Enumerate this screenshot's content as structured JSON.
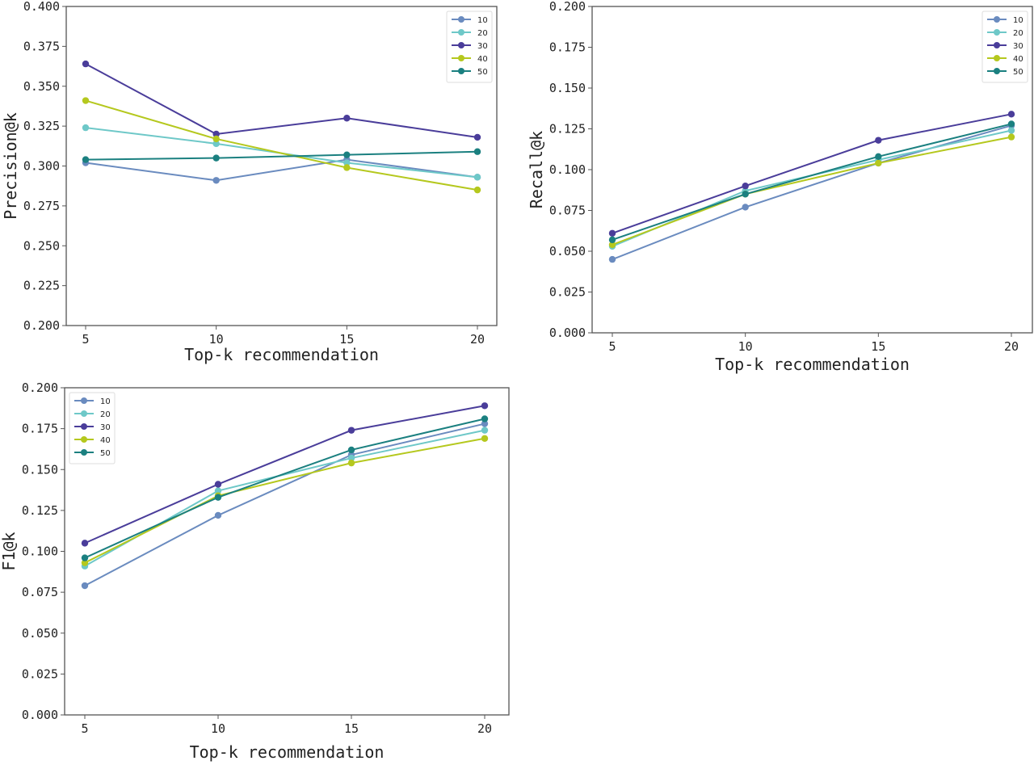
{
  "chart_data": [
    {
      "type": "line",
      "title": "",
      "xlabel": "Top-k recommendation",
      "ylabel": "Precision@k",
      "x": [
        5,
        10,
        15,
        20
      ],
      "xticks": [
        "5",
        "10",
        "15",
        "20"
      ],
      "ylim": [
        0.2,
        0.4
      ],
      "yticks": [
        "0.200",
        "0.225",
        "0.250",
        "0.275",
        "0.300",
        "0.325",
        "0.350",
        "0.375",
        "0.400"
      ],
      "legend_position": "top-right",
      "grid": false,
      "series": [
        {
          "name": "10",
          "color": "#6a8bbf",
          "values": [
            0.302,
            0.291,
            0.304,
            0.293
          ]
        },
        {
          "name": "20",
          "color": "#6ec8c8",
          "values": [
            0.324,
            0.314,
            0.302,
            0.293
          ]
        },
        {
          "name": "30",
          "color": "#4a3d9a",
          "values": [
            0.364,
            0.32,
            0.33,
            0.318
          ]
        },
        {
          "name": "40",
          "color": "#b5c81e",
          "values": [
            0.341,
            0.317,
            0.299,
            0.285
          ]
        },
        {
          "name": "50",
          "color": "#1b8080",
          "values": [
            0.304,
            0.305,
            0.307,
            0.309
          ]
        }
      ]
    },
    {
      "type": "line",
      "title": "",
      "xlabel": "Top-k recommendation",
      "ylabel": "Recall@k",
      "x": [
        5,
        10,
        15,
        20
      ],
      "xticks": [
        "5",
        "10",
        "15",
        "20"
      ],
      "ylim": [
        0.0,
        0.2
      ],
      "yticks": [
        "0.000",
        "0.025",
        "0.050",
        "0.075",
        "0.100",
        "0.125",
        "0.150",
        "0.175",
        "0.200"
      ],
      "legend_position": "top-right",
      "grid": false,
      "series": [
        {
          "name": "10",
          "color": "#6a8bbf",
          "values": [
            0.045,
            0.077,
            0.104,
            0.127
          ]
        },
        {
          "name": "20",
          "color": "#6ec8c8",
          "values": [
            0.053,
            0.087,
            0.106,
            0.124
          ]
        },
        {
          "name": "30",
          "color": "#4a3d9a",
          "values": [
            0.061,
            0.09,
            0.118,
            0.134
          ]
        },
        {
          "name": "40",
          "color": "#b5c81e",
          "values": [
            0.054,
            0.085,
            0.104,
            0.12
          ]
        },
        {
          "name": "50",
          "color": "#1b8080",
          "values": [
            0.057,
            0.085,
            0.108,
            0.128
          ]
        }
      ]
    },
    {
      "type": "line",
      "title": "",
      "xlabel": "Top-k recommendation",
      "ylabel": "F1@k",
      "x": [
        5,
        10,
        15,
        20
      ],
      "xticks": [
        "5",
        "10",
        "15",
        "20"
      ],
      "ylim": [
        0.0,
        0.2
      ],
      "yticks": [
        "0.000",
        "0.025",
        "0.050",
        "0.075",
        "0.100",
        "0.125",
        "0.150",
        "0.175",
        "0.200"
      ],
      "legend_position": "top-left",
      "grid": false,
      "series": [
        {
          "name": "10",
          "color": "#6a8bbf",
          "values": [
            0.079,
            0.122,
            0.159,
            0.178
          ]
        },
        {
          "name": "20",
          "color": "#6ec8c8",
          "values": [
            0.091,
            0.137,
            0.157,
            0.174
          ]
        },
        {
          "name": "30",
          "color": "#4a3d9a",
          "values": [
            0.105,
            0.141,
            0.174,
            0.189
          ]
        },
        {
          "name": "40",
          "color": "#b5c81e",
          "values": [
            0.093,
            0.134,
            0.154,
            0.169
          ]
        },
        {
          "name": "50",
          "color": "#1b8080",
          "values": [
            0.096,
            0.133,
            0.162,
            0.181
          ]
        }
      ]
    }
  ]
}
